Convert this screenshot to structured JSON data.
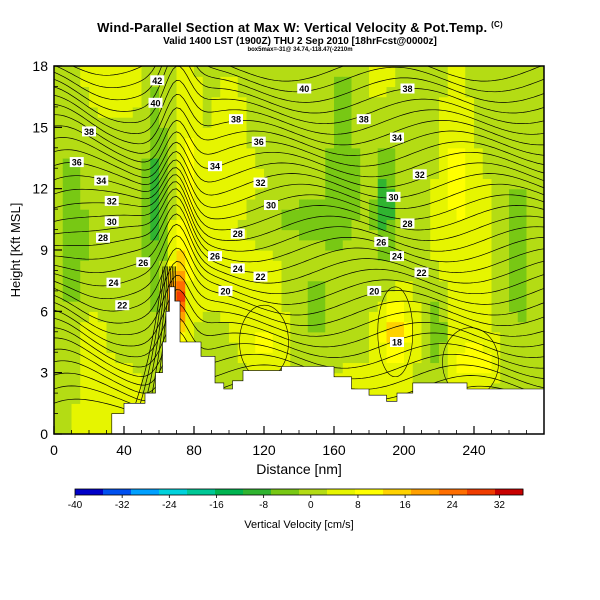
{
  "title": "Wind-Parallel Section at Max W: Vertical Velocity & Pot.Temp.",
  "title_mark": "(C)",
  "subtitle": "Valid 1400 LST (1900Z) THU 2 Sep 2010 [18hrFcst@0000z]",
  "subsubtitle": "box5max=-31@ 34.74,-118.47(-2210m",
  "chart_data": {
    "type": "heatmap",
    "xlabel": "Distance [nm]",
    "ylabel": "Height [Kft MSL]",
    "xlim": [
      0,
      280
    ],
    "ylim": [
      0,
      18
    ],
    "xticks": [
      0,
      40,
      80,
      120,
      160,
      200,
      240
    ],
    "yticks": [
      0,
      3,
      6,
      9,
      12,
      15,
      18
    ],
    "colorbar": {
      "label": "Vertical Velocity [cm/s]",
      "range": [
        -40,
        36
      ],
      "ticks": [
        -40,
        -32,
        -24,
        -16,
        -8,
        0,
        8,
        16,
        24,
        32
      ],
      "colors": [
        "#0000c8",
        "#0050f0",
        "#00a0ff",
        "#00d2dc",
        "#00c896",
        "#00b450",
        "#30b430",
        "#78c814",
        "#b4dc14",
        "#e6f500",
        "#ffff00",
        "#ffd200",
        "#ffa000",
        "#ff6e00",
        "#f03c00",
        "#c80000"
      ]
    },
    "terrain": [
      [
        0,
        0
      ],
      [
        33,
        0
      ],
      [
        33,
        1
      ],
      [
        40,
        1
      ],
      [
        40,
        1.5
      ],
      [
        52,
        1.5
      ],
      [
        52,
        2
      ],
      [
        58,
        2
      ],
      [
        58,
        3
      ],
      [
        62,
        3
      ],
      [
        62,
        4.5
      ],
      [
        64,
        4.5
      ],
      [
        64,
        6
      ],
      [
        66,
        6
      ],
      [
        66,
        7.2
      ],
      [
        69,
        7.2
      ],
      [
        69,
        6.5
      ],
      [
        72,
        6.5
      ],
      [
        72,
        4.5
      ],
      [
        84,
        4.5
      ],
      [
        84,
        3.8
      ],
      [
        92,
        3.8
      ],
      [
        92,
        2.5
      ],
      [
        97,
        2.5
      ],
      [
        97,
        2.2
      ],
      [
        102,
        2.2
      ],
      [
        102,
        2.6
      ],
      [
        108,
        2.6
      ],
      [
        108,
        3.1
      ],
      [
        130,
        3.1
      ],
      [
        130,
        3.3
      ],
      [
        160,
        3.3
      ],
      [
        160,
        2.8
      ],
      [
        170,
        2.8
      ],
      [
        170,
        2.2
      ],
      [
        180,
        2.2
      ],
      [
        180,
        1.9
      ],
      [
        190,
        1.9
      ],
      [
        190,
        1.6
      ],
      [
        196,
        1.6
      ],
      [
        196,
        2.0
      ],
      [
        205,
        2.0
      ],
      [
        205,
        2.5
      ],
      [
        236,
        2.5
      ],
      [
        236,
        2.2
      ],
      [
        280,
        2.2
      ]
    ],
    "theta_labels": [
      {
        "t": "42",
        "x": 59,
        "y": 17.3
      },
      {
        "t": "40",
        "x": 58,
        "y": 16.2
      },
      {
        "t": "38",
        "x": 20,
        "y": 14.8
      },
      {
        "t": "36",
        "x": 13,
        "y": 13.3
      },
      {
        "t": "34",
        "x": 27,
        "y": 12.4
      },
      {
        "t": "32",
        "x": 33,
        "y": 11.4
      },
      {
        "t": "30",
        "x": 33,
        "y": 10.4
      },
      {
        "t": "28",
        "x": 28,
        "y": 9.6
      },
      {
        "t": "26",
        "x": 51,
        "y": 8.4
      },
      {
        "t": "24",
        "x": 34,
        "y": 7.4
      },
      {
        "t": "22",
        "x": 39,
        "y": 6.3
      },
      {
        "t": "38",
        "x": 104,
        "y": 15.4
      },
      {
        "t": "36",
        "x": 117,
        "y": 14.3
      },
      {
        "t": "34",
        "x": 92,
        "y": 13.1
      },
      {
        "t": "32",
        "x": 118,
        "y": 12.3
      },
      {
        "t": "30",
        "x": 124,
        "y": 11.2
      },
      {
        "t": "28",
        "x": 105,
        "y": 9.8
      },
      {
        "t": "26",
        "x": 92,
        "y": 8.7
      },
      {
        "t": "24",
        "x": 105,
        "y": 8.1
      },
      {
        "t": "22",
        "x": 118,
        "y": 7.7
      },
      {
        "t": "20",
        "x": 98,
        "y": 7.0
      },
      {
        "t": "40",
        "x": 143,
        "y": 16.9
      },
      {
        "t": "38",
        "x": 177,
        "y": 15.4
      },
      {
        "t": "38",
        "x": 202,
        "y": 16.9
      },
      {
        "t": "34",
        "x": 196,
        "y": 14.5
      },
      {
        "t": "32",
        "x": 209,
        "y": 12.7
      },
      {
        "t": "30",
        "x": 194,
        "y": 11.6
      },
      {
        "t": "28",
        "x": 202,
        "y": 10.3
      },
      {
        "t": "26",
        "x": 187,
        "y": 9.4
      },
      {
        "t": "24",
        "x": 196,
        "y": 8.7
      },
      {
        "t": "22",
        "x": 210,
        "y": 7.9
      },
      {
        "t": "20",
        "x": 183,
        "y": 7.0
      },
      {
        "t": "18",
        "x": 196,
        "y": 4.5
      }
    ]
  }
}
